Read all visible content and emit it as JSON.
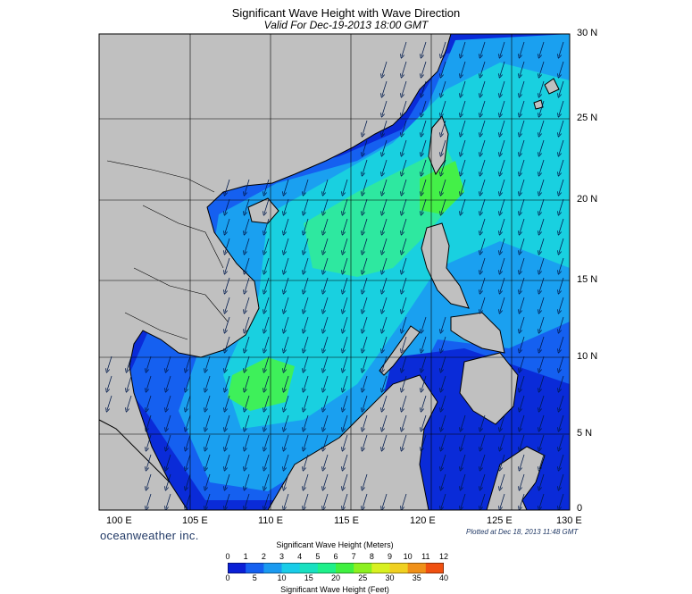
{
  "title": "Significant Wave Height with Wave Direction",
  "subtitle": "Valid For Dec-19-2013 18:00 GMT",
  "lat_labels": [
    "30 N",
    "25 N",
    "20 N",
    "15 N",
    "10 N",
    "5 N",
    "0"
  ],
  "lon_labels": [
    "100 E",
    "105 E",
    "110 E",
    "115 E",
    "120 E",
    "125 E",
    "130 E"
  ],
  "brand": "oceanweather inc.",
  "plotted": "Plotted at Dec 18, 2013 11:48 GMT",
  "colorbar": {
    "title_meters": "Significant Wave Height (Meters)",
    "meters_ticks": [
      "0",
      "1",
      "2",
      "3",
      "4",
      "5",
      "6",
      "7",
      "8",
      "9",
      "10",
      "11",
      "12"
    ],
    "feet_ticks": [
      "0",
      "5",
      "10",
      "15",
      "20",
      "25",
      "30",
      "35",
      "40"
    ],
    "title_feet": "Significant Wave Height (Feet)",
    "colors": [
      "#0a1fd6",
      "#1560f0",
      "#1a9af0",
      "#19cce8",
      "#18e0c0",
      "#1ef08a",
      "#40f040",
      "#8cf020",
      "#d8f020",
      "#f0d020",
      "#f09018",
      "#f05010"
    ]
  },
  "colors": {
    "land": "#c0c0c0",
    "sea_low": "#0a2bd8",
    "sea_mid": "#16c6ea",
    "sea_high": "#3ef05a"
  },
  "map_extent": {
    "lon": [
      98,
      130
    ],
    "lat": [
      0,
      30
    ]
  },
  "arrow_direction": "from northeast (southwestward)"
}
